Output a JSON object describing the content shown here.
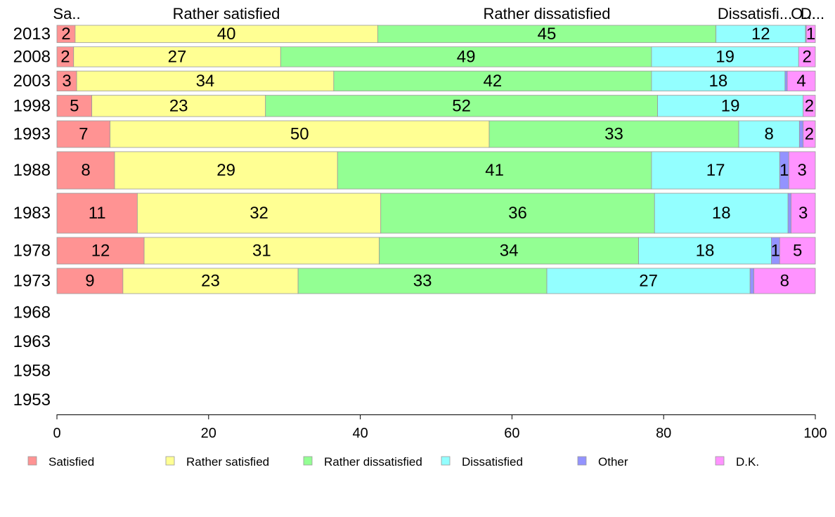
{
  "chart_data": {
    "type": "bar",
    "orientation": "horizontal",
    "stacked": true,
    "variable_width": true,
    "categories": [
      "2013",
      "2008",
      "2003",
      "1998",
      "1993",
      "1988",
      "1983",
      "1978",
      "1973",
      "1968",
      "1963",
      "1958",
      "1953"
    ],
    "series": [
      {
        "name": "Satisfied",
        "color": "#FF9393",
        "values": [
          2.4,
          2.2,
          2.6,
          4.6,
          7.0,
          7.6,
          10.6,
          11.5,
          8.7,
          null,
          null,
          null,
          null
        ],
        "labels": [
          "2",
          "2",
          "3",
          "5",
          "7",
          "8",
          "11",
          "12",
          "9",
          "",
          "",
          "",
          ""
        ]
      },
      {
        "name": "Rather satisfied",
        "color": "#FFFF93",
        "values": [
          39.9,
          27.3,
          33.9,
          22.9,
          50.0,
          29.4,
          32.1,
          31.0,
          23.1,
          null,
          null,
          null,
          null
        ],
        "labels": [
          "40",
          "27",
          "34",
          "23",
          "50",
          "29",
          "32",
          "31",
          "23",
          "",
          "",
          "",
          ""
        ]
      },
      {
        "name": "Rather dissatisfied",
        "color": "#93FF93",
        "values": [
          44.6,
          48.9,
          41.9,
          51.7,
          32.9,
          41.4,
          36.1,
          34.2,
          32.8,
          null,
          null,
          null,
          null
        ],
        "labels": [
          "45",
          "49",
          "42",
          "52",
          "33",
          "41",
          "36",
          "34",
          "33",
          "",
          "",
          "",
          ""
        ]
      },
      {
        "name": "Dissatisfied",
        "color": "#93FFFF",
        "values": [
          11.8,
          19.4,
          17.6,
          19.2,
          8.0,
          16.9,
          17.6,
          17.5,
          26.8,
          null,
          null,
          null,
          null
        ],
        "labels": [
          "12",
          "19",
          "18",
          "19",
          "8",
          "17",
          "18",
          "18",
          "27",
          "",
          "",
          "",
          ""
        ]
      },
      {
        "name": "Other",
        "color": "#9393FF",
        "values": [
          0.1,
          0.0,
          0.3,
          0.0,
          0.5,
          1.2,
          0.4,
          1.1,
          0.5,
          null,
          null,
          null,
          null
        ],
        "labels": [
          "",
          "",
          "",
          "",
          "",
          "1",
          "",
          "1",
          "",
          "",
          "",
          "",
          ""
        ]
      },
      {
        "name": "D.K.",
        "color": "#FF93FF",
        "values": [
          1.2,
          2.2,
          3.7,
          1.6,
          1.6,
          3.5,
          3.2,
          4.7,
          8.1,
          null,
          null,
          null,
          null
        ],
        "labels": [
          "1",
          "2",
          "4",
          "2",
          "2",
          "3",
          "3",
          "5",
          "8",
          "",
          "",
          "",
          ""
        ]
      }
    ],
    "row_weights": [
      0.65,
      0.75,
      0.75,
      0.8,
      1.0,
      1.4,
      1.5,
      1.0,
      0.95,
      0,
      0,
      0,
      0
    ],
    "top_labels": [
      "Sa..",
      "Rather satisfied",
      "Rather dissatisfied",
      "Dissatisfi...",
      "O...",
      "D..."
    ],
    "xlim": [
      0,
      100
    ],
    "xticks": [
      "0",
      "20",
      "40",
      "60",
      "80",
      "100"
    ],
    "title": "",
    "xlabel": "",
    "ylabel": "",
    "grid": false,
    "legend_position": "bottom"
  }
}
